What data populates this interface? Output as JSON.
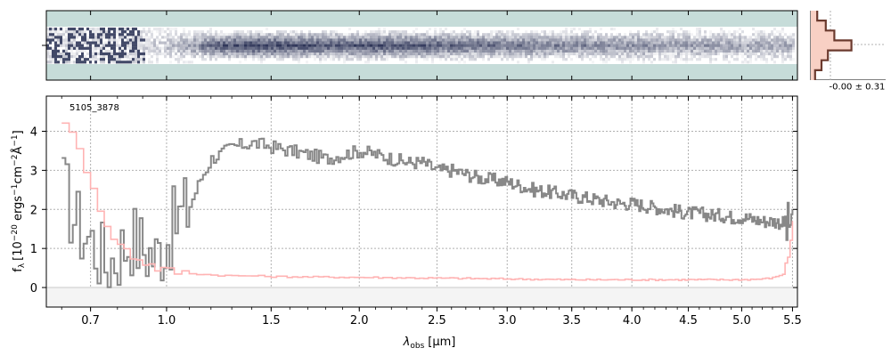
{
  "chart_data": {
    "type": "line",
    "object_id": "5105_3878",
    "xlabel_main": "λ",
    "xlabel_sub": "obs",
    "xlabel_unit": "[μm]",
    "ylabel": "f_λ [10^-20 ergs^-1 cm^-2 Å^-1]",
    "ylabel_f": "f",
    "ylabel_flam_sub": "λ",
    "ylabel_bracket": "[10",
    "ylabel_exp1": "−20",
    "ylabel_ergs": " ergs",
    "ylabel_exp2": "−1",
    "ylabel_cm": "cm",
    "ylabel_exp3": "−2",
    "ylabel_A": "Å",
    "ylabel_exp4": "−1",
    "ylabel_close": "]",
    "x_scale": "sqrt",
    "xlim": [
      0.55,
      5.55
    ],
    "ylim": [
      -0.5,
      4.9
    ],
    "xticks": [
      0.7,
      1.0,
      1.5,
      2.0,
      2.5,
      3.0,
      3.5,
      4.0,
      4.5,
      5.0,
      5.5
    ],
    "xtick_labels": [
      "0.7",
      "1.0",
      "1.5",
      "2.0",
      "2.5",
      "3.0",
      "3.5",
      "4.0",
      "4.5",
      "5.0",
      "5.5"
    ],
    "yticks": [
      0,
      1,
      2,
      3,
      4
    ],
    "ytick_labels": [
      "0",
      "1",
      "2",
      "3",
      "4"
    ],
    "grid": true,
    "series": [
      {
        "role": "flux",
        "color": "#888888",
        "x": [
          0.6,
          0.65,
          0.7,
          0.75,
          0.8,
          0.85,
          0.9,
          0.95,
          1.0,
          1.05,
          1.1,
          1.15,
          1.2,
          1.3,
          1.4,
          1.5,
          1.6,
          1.7,
          1.8,
          1.9,
          2.0,
          2.1,
          2.2,
          2.3,
          2.4,
          2.5,
          2.6,
          2.7,
          2.8,
          2.9,
          3.0,
          3.1,
          3.2,
          3.3,
          3.4,
          3.5,
          3.6,
          3.7,
          3.8,
          3.9,
          4.0,
          4.1,
          4.2,
          4.3,
          4.4,
          4.5,
          4.6,
          4.7,
          4.8,
          4.9,
          5.0,
          5.1,
          5.2,
          5.3,
          5.4,
          5.45,
          5.5
        ],
        "y": [
          2.5,
          1.6,
          1.2,
          0.6,
          0.9,
          1.3,
          1.0,
          0.8,
          1.3,
          1.8,
          2.1,
          2.8,
          3.3,
          3.6,
          3.7,
          3.6,
          3.5,
          3.4,
          3.3,
          3.4,
          3.5,
          3.4,
          3.3,
          3.2,
          3.2,
          3.0,
          3.0,
          2.9,
          2.8,
          2.75,
          2.7,
          2.6,
          2.5,
          2.45,
          2.4,
          2.35,
          2.3,
          2.25,
          2.2,
          2.15,
          2.15,
          2.1,
          2.05,
          2.0,
          1.95,
          1.9,
          1.9,
          1.85,
          1.85,
          1.8,
          1.8,
          1.75,
          1.7,
          1.7,
          1.65,
          1.5,
          2.0
        ]
      },
      {
        "role": "error",
        "color": "#ffb3b3",
        "x": [
          0.6,
          0.65,
          0.7,
          0.75,
          0.8,
          0.85,
          0.9,
          0.95,
          1.0,
          1.1,
          1.2,
          1.3,
          1.4,
          1.5,
          1.7,
          2.0,
          2.5,
          3.0,
          3.5,
          4.0,
          4.5,
          5.0,
          5.2,
          5.3,
          5.4,
          5.45,
          5.5
        ],
        "y": [
          4.3,
          3.5,
          2.6,
          1.5,
          1.1,
          0.8,
          0.65,
          0.5,
          0.42,
          0.36,
          0.32,
          0.3,
          0.3,
          0.28,
          0.27,
          0.26,
          0.24,
          0.22,
          0.2,
          0.2,
          0.2,
          0.2,
          0.22,
          0.25,
          0.35,
          0.8,
          1.7
        ]
      }
    ],
    "spectrum_2d": {
      "colormap": [
        "#c6dcd9",
        "#ffffff",
        "#2e3558"
      ]
    },
    "profile": {
      "label": "-0.00 ± 0.31",
      "fill_color": "#f8d0c4",
      "line_color": "#6b3a2e",
      "values": [
        0.15,
        0.35,
        0.55,
        0.95,
        0.4,
        0.25,
        0.1
      ]
    }
  }
}
